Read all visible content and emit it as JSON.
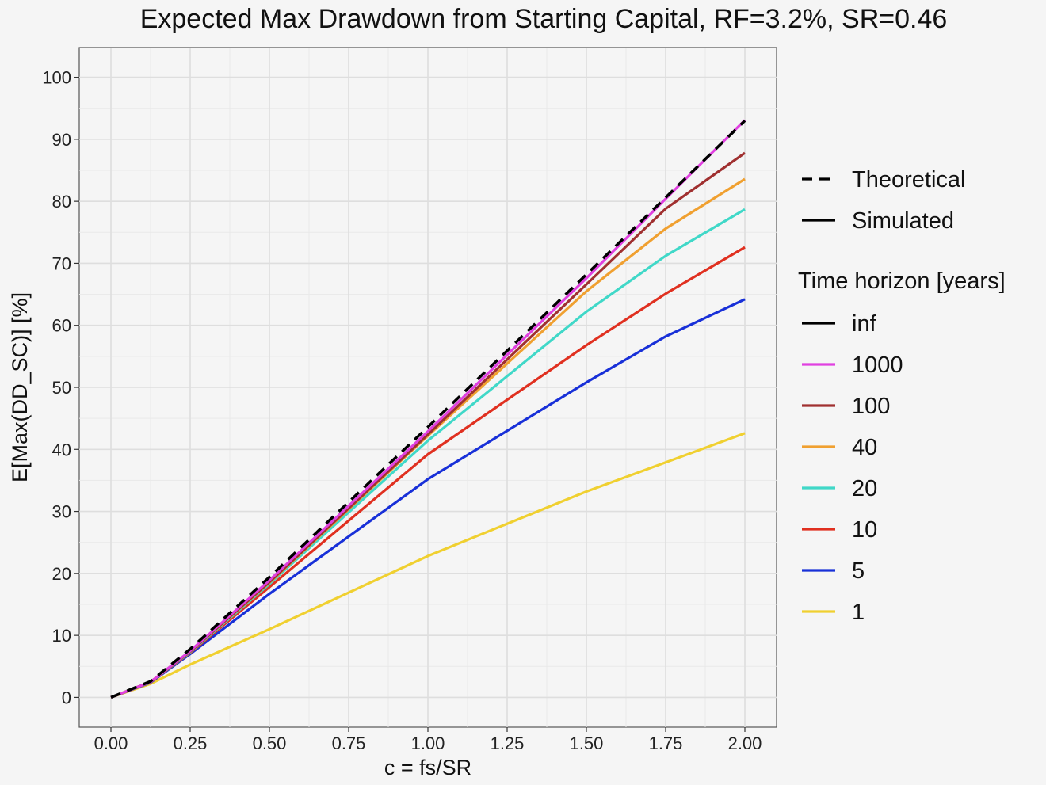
{
  "chart_data": {
    "type": "line",
    "title": "Expected Max Drawdown from Starting Capital, RF=3.2%, SR=0.46",
    "xlabel": "c = fs/SR",
    "ylabel": "E[Max(DD_SC)] [%]",
    "xlim": [
      -0.1,
      2.1
    ],
    "ylim": [
      -4.8,
      104.8
    ],
    "x_ticks": [
      0,
      0.25,
      0.5,
      0.75,
      1.0,
      1.25,
      1.5,
      1.75,
      2.0
    ],
    "x_tick_labels": [
      "0.00",
      "0.25",
      "0.50",
      "0.75",
      "1.00",
      "1.25",
      "1.50",
      "1.75",
      "2.00"
    ],
    "y_ticks": [
      0,
      10,
      20,
      30,
      40,
      50,
      60,
      70,
      80,
      90,
      100
    ],
    "y_tick_labels": [
      "0",
      "10",
      "20",
      "30",
      "40",
      "50",
      "60",
      "70",
      "80",
      "90",
      "100"
    ],
    "grid": true,
    "x": [
      0,
      0.125,
      0.25,
      0.5,
      1.0,
      1.5,
      1.75,
      2.0
    ],
    "legend_linetype": [
      {
        "label": "Theoretical",
        "dash": true
      },
      {
        "label": "Simulated",
        "dash": false
      }
    ],
    "legend_title": "Time horizon [years]",
    "legend_position": "right",
    "series": [
      {
        "name": "inf",
        "color": "#000000",
        "dashed": true,
        "values": [
          0,
          2.6,
          7.8,
          19.4,
          43.6,
          68.2,
          80.6,
          93.0
        ]
      },
      {
        "name": "1000",
        "color": "#e040e0",
        "dashed": false,
        "values": [
          0,
          2.5,
          7.5,
          18.9,
          42.9,
          67.6,
          80.4,
          93.1
        ]
      },
      {
        "name": "100",
        "color": "#a03030",
        "dashed": false,
        "values": [
          0,
          2.5,
          7.4,
          18.6,
          42.4,
          66.6,
          78.8,
          87.8
        ]
      },
      {
        "name": "40",
        "color": "#f0a030",
        "dashed": false,
        "values": [
          0,
          2.5,
          7.4,
          18.5,
          42.2,
          65.5,
          75.6,
          83.6
        ]
      },
      {
        "name": "20",
        "color": "#40d8c8",
        "dashed": false,
        "values": [
          0,
          2.5,
          7.3,
          18.3,
          41.4,
          62.2,
          71.2,
          78.7
        ]
      },
      {
        "name": "10",
        "color": "#e03020",
        "dashed": false,
        "values": [
          0,
          2.5,
          7.2,
          17.8,
          39.2,
          56.8,
          65.1,
          72.6
        ]
      },
      {
        "name": "5",
        "color": "#1830d8",
        "dashed": false,
        "values": [
          0,
          2.4,
          7.0,
          16.7,
          35.2,
          50.8,
          58.2,
          64.2
        ]
      },
      {
        "name": "1",
        "color": "#f0d030",
        "dashed": false,
        "values": [
          0,
          2.2,
          5.3,
          11.0,
          22.8,
          33.2,
          37.9,
          42.6
        ]
      }
    ]
  }
}
